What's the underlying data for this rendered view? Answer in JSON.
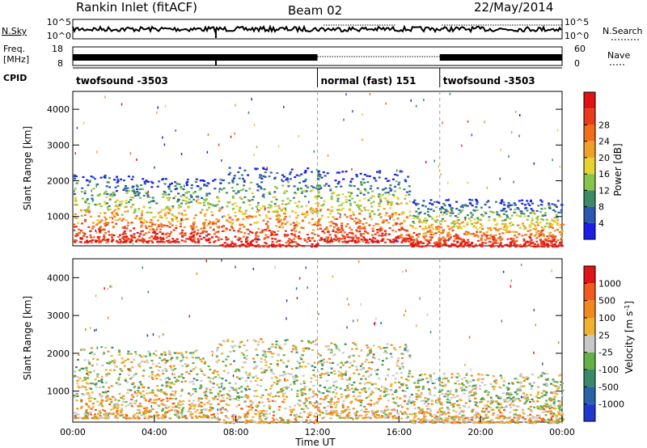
{
  "header": {
    "station": "Rankin Inlet (fitACF)",
    "beam": "Beam 02",
    "date": "22/May/2014"
  },
  "summary_panels": {
    "nsky_label": "N.Sky",
    "nsearch_label": "N.Search",
    "nsky_ticks": [
      "10^5",
      "10^0"
    ],
    "nsearch_ticks": [
      "10^5",
      "10^0"
    ],
    "freq_label_top": "Freq.",
    "freq_label_unit": "[MHz]",
    "freq_ticks": [
      "18",
      "8"
    ],
    "nave_label": "Nave",
    "nave_ticks": [
      "60",
      "0"
    ],
    "cpid_label": "CPID",
    "cpid_segments": [
      {
        "label": "twofsound -3503",
        "start_hour": 0,
        "end_hour": 12
      },
      {
        "label": "normal (fast) 151",
        "start_hour": 12,
        "end_hour": 18
      },
      {
        "label": "twofsound -3503",
        "start_hour": 18,
        "end_hour": 24
      }
    ]
  },
  "chart_data": [
    {
      "type": "heatmap",
      "quantity": "Power",
      "ylabel": "Slant Range [km]",
      "xlabel": "Time UT",
      "ylim": [
        180,
        4500
      ],
      "yticks": [
        1000,
        2000,
        3000,
        4000
      ],
      "xlim": [
        0,
        24
      ],
      "xticks": [
        "00:00",
        "04:00",
        "08:00",
        "12:00",
        "16:00",
        "20:00",
        "00:00"
      ],
      "colorbar": {
        "label": "Power [dB]",
        "ticks": [
          "4",
          "8",
          "12",
          "16",
          "20",
          "24",
          "28"
        ],
        "colors": [
          "#1c1ee8",
          "#2a56b4",
          "#3c8a66",
          "#86c44a",
          "#e8d230",
          "#f0a028",
          "#f06e1e",
          "#e83c1c",
          "#e01414"
        ]
      },
      "echo_regions": [
        {
          "t0": 0.0,
          "t1": 3.0,
          "r0": 300,
          "r1": 2200,
          "level": "high"
        },
        {
          "t0": 3.0,
          "t1": 7.0,
          "r0": 300,
          "r1": 2100,
          "level": "high"
        },
        {
          "t0": 7.0,
          "t1": 12.0,
          "r0": 180,
          "r1": 2400,
          "level": "high"
        },
        {
          "t0": 12.0,
          "t1": 16.5,
          "r0": 300,
          "r1": 2300,
          "level": "mid"
        },
        {
          "t0": 16.5,
          "t1": 24.0,
          "r0": 180,
          "r1": 1500,
          "level": "mid"
        }
      ]
    },
    {
      "type": "heatmap",
      "quantity": "Velocity",
      "ylabel": "Slant Range [km]",
      "xlabel": "Time UT",
      "ylim": [
        180,
        4500
      ],
      "yticks": [
        1000,
        2000,
        3000,
        4000
      ],
      "xlim": [
        0,
        24
      ],
      "xticks": [
        "00:00",
        "04:00",
        "08:00",
        "12:00",
        "16:00",
        "20:00",
        "00:00"
      ],
      "colorbar": {
        "label": "Velocity [m s-1]",
        "ticks": [
          "1000",
          "500",
          "100",
          "25",
          "-25",
          "-100",
          "-500",
          "-1000"
        ],
        "colors": [
          "#2038d0",
          "#2a62a8",
          "#3a8a6a",
          "#64b046",
          "#c8c8c8",
          "#f0b030",
          "#f08a1e",
          "#f05a1c",
          "#e01414"
        ]
      },
      "echo_regions": [
        {
          "t0": 0.0,
          "t1": 3.0,
          "r0": 300,
          "r1": 2200,
          "level": "ground+toward"
        },
        {
          "t0": 3.0,
          "t1": 7.0,
          "r0": 300,
          "r1": 2100,
          "level": "mixed"
        },
        {
          "t0": 7.0,
          "t1": 12.0,
          "r0": 180,
          "r1": 2400,
          "level": "mixed"
        },
        {
          "t0": 12.0,
          "t1": 16.5,
          "r0": 300,
          "r1": 2300,
          "level": "ground"
        },
        {
          "t0": 16.5,
          "t1": 24.0,
          "r0": 180,
          "r1": 1500,
          "level": "away"
        }
      ]
    }
  ]
}
